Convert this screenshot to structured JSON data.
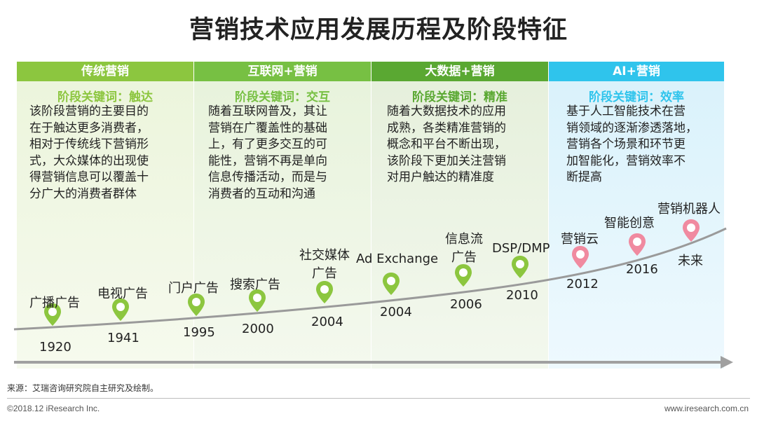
{
  "title": "营销技术应用发展历程及阶段特征",
  "colors": {
    "stage1": "#8cc63f",
    "stage2": "#77c043",
    "stage3": "#5aa832",
    "stage4": "#2fc4ec",
    "pin_green": "#8cc63f",
    "pin_pink": "#f08aa0"
  },
  "stages": [
    {
      "header": "传统营销",
      "keyword": "阶段关键词：触达",
      "desc": [
        "该阶段营销的主要目的",
        "在于触达更多消费者，",
        "相对于传统线下营销形",
        "式，大众媒体的出现使",
        "得营销信息可以覆盖十",
        "分广大的消费者群体"
      ]
    },
    {
      "header": "互联网+营销",
      "keyword": "阶段关键词：交互",
      "desc": [
        "随着互联网普及，其让",
        "营销在广覆盖性的基础",
        "上，有了更多交互的可",
        "能性，营销不再是单向",
        "信息传播活动，而是与",
        "消费者的互动和沟通"
      ]
    },
    {
      "header": "大数据+营销",
      "keyword": "阶段关键词：精准",
      "desc": [
        "随着大数据技术的应用",
        "成熟，各类精准营销的",
        "概念和平台不断出现，",
        "该阶段下更加关注营销",
        "对用户触达的精准度"
      ]
    },
    {
      "header": "AI+营销",
      "keyword": "阶段关键词：效率",
      "desc": [
        "基于人工智能技术在营",
        "销领域的逐渐渗透落地，",
        "营销各个场景和环节更",
        "加智能化，营销效率不",
        "断提高"
      ]
    }
  ],
  "milestones": [
    {
      "label": [
        "广播广告"
      ],
      "year": "1920"
    },
    {
      "label": [
        "电视广告"
      ],
      "year": "1941"
    },
    {
      "label": [
        "门户广告"
      ],
      "year": "1995"
    },
    {
      "label": [
        "搜索广告"
      ],
      "year": "2000"
    },
    {
      "label": [
        "社交媒体",
        "广告"
      ],
      "year": "2004"
    },
    {
      "label": [
        "Ad Exchange"
      ],
      "year": "2004"
    },
    {
      "label": [
        "信息流",
        "广告"
      ],
      "year": "2006"
    },
    {
      "label": [
        "DSP/DMP"
      ],
      "year": "2010"
    },
    {
      "label": [
        "营销云"
      ],
      "year": "2012"
    },
    {
      "label": [
        "智能创意"
      ],
      "year": "2016"
    },
    {
      "label": [
        "营销机器人"
      ],
      "year": "未来"
    }
  ],
  "source": "来源：艾瑞咨询研究院自主研究及绘制。",
  "copyright": "©2018.12 iResearch Inc.",
  "website": "www.iresearch.com.cn"
}
